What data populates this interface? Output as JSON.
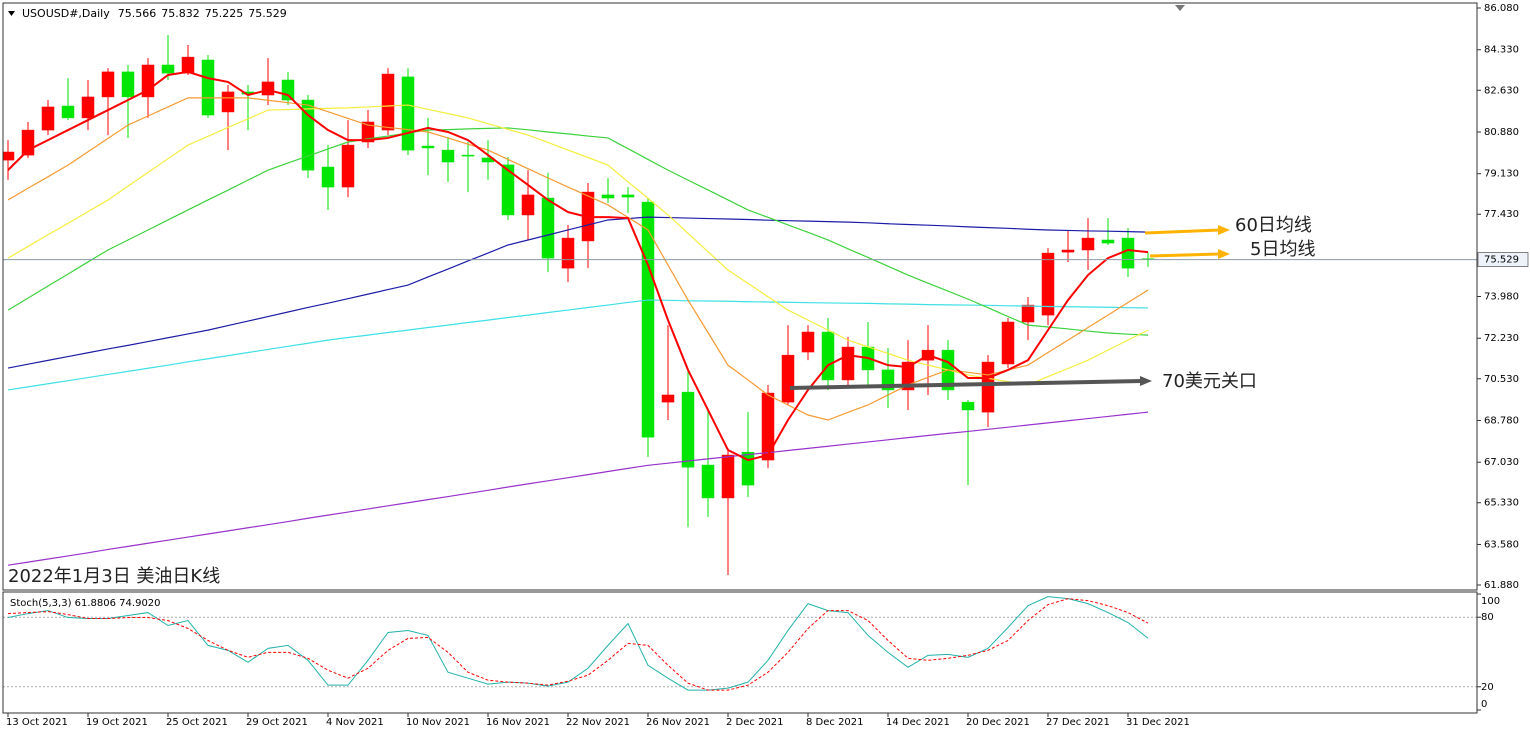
{
  "chart_data": [
    {
      "type": "candlestick",
      "symbol": "USOUSD#,Daily",
      "categories": [
        "13 Oct 2021",
        null,
        null,
        null,
        "19 Oct 2021",
        null,
        null,
        null,
        "25 Oct 2021",
        null,
        null,
        null,
        "29 Oct 2021",
        null,
        null,
        null,
        "4 Nov 2021",
        null,
        null,
        null,
        "10 Nov 2021",
        null,
        null,
        null,
        "16 Nov 2021",
        null,
        null,
        null,
        "22 Nov 2021",
        null,
        null,
        null,
        "26 Nov 2021",
        null,
        null,
        null,
        "2 Dec 2021",
        null,
        null,
        null,
        "8 Dec 2021",
        null,
        null,
        null,
        "14 Dec 2021",
        null,
        null,
        null,
        "20 Dec 2021",
        null,
        null,
        null,
        "27 Dec 2021",
        null,
        null,
        null,
        "31 Dec 2021",
        null
      ],
      "open": [
        79.7,
        79.91,
        80.96,
        81.97,
        81.47,
        82.35,
        83.4,
        82.35,
        83.69,
        83.35,
        83.9,
        81.72,
        82.56,
        82.43,
        83.06,
        82.22,
        79.41,
        78.57,
        80.46,
        80.96,
        83.19,
        80.29,
        80.12,
        79.91,
        79.79,
        79.5,
        77.4,
        78.11,
        75.17,
        76.31,
        78.24,
        78.24,
        77.94,
        69.55,
        69.97,
        66.91,
        65.53,
        67.45,
        67.12,
        69.55,
        71.65,
        72.49,
        70.48,
        71.86,
        70.9,
        70.06,
        71.31,
        71.73,
        69.55,
        69.13,
        71.15,
        72.91,
        73.2,
        75.84,
        75.93,
        76.35,
        76.43,
        75.566
      ],
      "high": [
        80.54,
        81.3,
        82.22,
        83.14,
        83.06,
        83.56,
        83.69,
        83.98,
        84.95,
        84.53,
        84.11,
        82.85,
        82.85,
        83.98,
        83.4,
        82.43,
        80.33,
        81.38,
        81.8,
        83.56,
        83.56,
        81.47,
        80.67,
        80.46,
        80.54,
        79.83,
        79.28,
        79.16,
        76.98,
        78.74,
        78.95,
        78.57,
        78.11,
        72.78,
        70.98,
        69.22,
        67.62,
        69.13,
        70.27,
        72.78,
        72.78,
        73.08,
        72.28,
        72.91,
        71.82,
        72.15,
        72.78,
        72.15,
        69.64,
        71.52,
        73.08,
        73.96,
        76.01,
        76.77,
        77.27,
        77.27,
        76.85,
        75.832
      ],
      "low": [
        78.87,
        79.79,
        80.75,
        81.38,
        80.96,
        80.75,
        80.63,
        81.47,
        83.06,
        83.27,
        81.47,
        80.12,
        80.96,
        82.01,
        82.01,
        78.95,
        77.61,
        78.15,
        80.21,
        80.75,
        79.91,
        79.07,
        78.78,
        78.36,
        78.87,
        77.19,
        76.35,
        75.0,
        74.59,
        75.17,
        77.9,
        77.48,
        67.25,
        68.8,
        64.31,
        64.73,
        62.3,
        65.57,
        66.78,
        69.43,
        71.31,
        70.06,
        70.14,
        70.14,
        69.3,
        69.22,
        69.85,
        69.64,
        66.07,
        68.5,
        70.98,
        72.15,
        72.78,
        75.42,
        75.09,
        76.14,
        74.8,
        75.225
      ],
      "close": [
        80.04,
        80.96,
        81.93,
        81.47,
        82.35,
        83.4,
        82.35,
        83.69,
        83.35,
        84.02,
        81.59,
        82.56,
        82.47,
        82.98,
        82.22,
        79.28,
        78.57,
        80.33,
        81.3,
        83.31,
        80.12,
        80.21,
        79.62,
        79.87,
        79.62,
        77.4,
        78.24,
        75.59,
        76.43,
        78.36,
        78.11,
        78.15,
        68.08,
        69.85,
        66.82,
        65.53,
        67.33,
        66.07,
        69.93,
        71.52,
        72.49,
        70.48,
        71.86,
        70.9,
        70.06,
        71.23,
        71.73,
        70.06,
        69.22,
        71.23,
        72.91,
        73.62,
        75.8,
        75.93,
        76.43,
        76.22,
        75.17,
        75.529
      ],
      "up_color": "#ff0000",
      "down_color": "#00e600",
      "lines": [
        {
          "color": "#9932cc",
          "values": [
            62.71,
            62.84,
            62.97,
            63.1,
            63.23,
            63.37,
            63.5,
            63.63,
            63.76,
            63.89,
            64.02,
            64.15,
            64.28,
            64.41,
            64.54,
            64.68,
            64.81,
            64.94,
            65.07,
            65.2,
            65.33,
            65.46,
            65.59,
            65.72,
            65.85,
            65.99,
            66.12,
            66.25,
            66.38,
            66.51,
            66.64,
            66.77,
            66.9,
            66.99,
            67.08,
            67.17,
            67.26,
            67.35,
            67.43,
            67.52,
            67.61,
            67.7,
            67.79,
            67.88,
            67.97,
            68.06,
            68.15,
            68.24,
            68.32,
            68.41,
            68.5,
            68.59,
            68.68,
            68.77,
            68.86,
            68.95,
            69.04,
            69.13
          ]
        },
        {
          "color": "#3ee0e6",
          "values": [
            70.06,
            70.19,
            70.32,
            70.45,
            70.58,
            70.71,
            70.84,
            70.97,
            71.1,
            71.24,
            71.37,
            71.5,
            71.63,
            71.76,
            71.89,
            72.02,
            72.15,
            72.26,
            72.36,
            72.47,
            72.57,
            72.68,
            72.78,
            72.89,
            72.99,
            73.1,
            73.2,
            73.31,
            73.41,
            73.52,
            73.62,
            73.73,
            73.83,
            73.82,
            73.8,
            73.79,
            73.78,
            73.76,
            73.75,
            73.74,
            73.72,
            73.71,
            73.7,
            73.69,
            73.67,
            73.66,
            73.64,
            73.63,
            73.62,
            73.61,
            73.59,
            73.58,
            73.56,
            73.55,
            73.54,
            73.53,
            73.51,
            73.5
          ]
        },
        {
          "color": "#1c1ca8",
          "values": [
            70.98,
            71.14,
            71.3,
            71.46,
            71.62,
            71.78,
            71.93,
            72.09,
            72.25,
            72.41,
            72.57,
            72.76,
            72.95,
            73.14,
            73.33,
            73.52,
            73.7,
            73.89,
            74.08,
            74.27,
            74.46,
            74.8,
            75.13,
            75.47,
            75.8,
            76.14,
            76.35,
            76.56,
            76.77,
            76.98,
            77.19,
            77.25,
            77.31,
            77.29,
            77.27,
            77.25,
            77.23,
            77.21,
            77.18,
            77.16,
            77.14,
            77.12,
            77.1,
            77.07,
            77.03,
            77.0,
            76.97,
            76.94,
            76.9,
            76.87,
            76.84,
            76.8,
            76.77,
            76.75,
            76.73,
            76.72,
            76.7,
            76.68
          ]
        },
        {
          "color": "#3cd23c",
          "values": [
            73.41,
            73.91,
            74.42,
            74.92,
            75.43,
            75.93,
            76.35,
            76.77,
            77.19,
            77.61,
            78.03,
            78.44,
            78.86,
            79.28,
            79.58,
            79.87,
            80.17,
            80.46,
            80.59,
            80.71,
            80.84,
            80.96,
            80.98,
            81.01,
            81.03,
            81.05,
            80.97,
            80.88,
            80.8,
            80.71,
            80.63,
            80.18,
            79.73,
            79.28,
            78.86,
            78.45,
            78.03,
            77.61,
            77.3,
            76.98,
            76.67,
            76.35,
            75.98,
            75.62,
            75.25,
            74.88,
            74.54,
            74.21,
            73.87,
            73.51,
            73.14,
            72.78,
            72.7,
            72.62,
            72.53,
            72.45,
            72.4,
            72.36
          ]
        },
        {
          "color": "#f5ee3c",
          "values": [
            75.59,
            76.08,
            76.57,
            77.05,
            77.54,
            78.03,
            78.61,
            79.18,
            79.76,
            80.33,
            80.7,
            81.07,
            81.43,
            81.8,
            81.82,
            81.85,
            81.87,
            81.89,
            81.93,
            81.97,
            82.01,
            81.83,
            81.65,
            81.47,
            81.23,
            80.99,
            80.75,
            80.44,
            80.12,
            79.81,
            79.49,
            78.79,
            78.1,
            77.4,
            76.63,
            75.86,
            75.09,
            74.53,
            73.97,
            73.41,
            72.99,
            72.57,
            72.15,
            71.87,
            71.59,
            71.31,
            71.1,
            70.9,
            70.69,
            70.55,
            70.41,
            70.27,
            70.62,
            70.96,
            71.31,
            71.73,
            72.15,
            72.57
          ]
        },
        {
          "color": "#f59a32",
          "values": [
            78.03,
            78.52,
            79.0,
            79.49,
            80.05,
            80.61,
            81.17,
            81.55,
            81.93,
            82.31,
            82.31,
            82.31,
            82.31,
            82.21,
            82.11,
            82.01,
            81.73,
            81.45,
            81.17,
            81.07,
            80.98,
            80.88,
            80.63,
            80.37,
            80.12,
            79.73,
            79.34,
            78.95,
            78.57,
            78.2,
            77.82,
            77.3,
            76.77,
            75.3,
            73.83,
            72.47,
            71.1,
            70.48,
            69.85,
            69.43,
            69.01,
            68.8,
            69.12,
            69.43,
            69.85,
            70.27,
            70.59,
            70.9,
            70.8,
            70.69,
            70.9,
            71.1,
            71.63,
            72.15,
            72.68,
            73.2,
            73.73,
            74.25
          ]
        },
        {
          "color": "#ff0000",
          "values": [
            79.28,
            80.12,
            80.54,
            80.96,
            81.38,
            81.8,
            82.22,
            82.64,
            83.27,
            83.4,
            83.14,
            82.98,
            82.43,
            82.64,
            82.43,
            81.59,
            80.96,
            80.54,
            80.54,
            80.63,
            80.84,
            81.05,
            80.88,
            80.54,
            79.91,
            79.28,
            78.66,
            78.03,
            77.52,
            77.31,
            77.31,
            77.27,
            75.3,
            72.99,
            70.9,
            69.22,
            67.54,
            67.12,
            67.33,
            68.8,
            70.06,
            71.1,
            71.52,
            71.4,
            71.1,
            71.02,
            71.52,
            71.23,
            70.56,
            70.56,
            70.9,
            71.31,
            72.57,
            73.83,
            74.88,
            75.59,
            75.93,
            75.84
          ]
        }
      ],
      "ylim": [
        61.67,
        86.29
      ],
      "yticks": [
        {
          "value": 86.08,
          "label": "86.080"
        },
        {
          "value": 84.33,
          "label": "84.330"
        },
        {
          "value": 82.63,
          "label": "82.630"
        },
        {
          "value": 80.88,
          "label": "80.880"
        },
        {
          "value": 79.13,
          "label": "79.130"
        },
        {
          "value": 77.43,
          "label": "77.430"
        },
        {
          "value": 73.98,
          "label": "73.980"
        },
        {
          "value": 72.23,
          "label": "72.230"
        },
        {
          "value": 70.53,
          "label": "70.530"
        },
        {
          "value": 68.78,
          "label": "68.780"
        },
        {
          "value": 67.03,
          "label": "67.030"
        },
        {
          "value": 65.33,
          "label": "65.330"
        },
        {
          "value": 63.58,
          "label": "63.580"
        },
        {
          "value": 61.88,
          "label": "61.880"
        }
      ],
      "annotations": [
        {
          "text": "60日均线",
          "color": "#ffb300"
        },
        {
          "text": "5日均线",
          "color": "#ffb300"
        },
        {
          "text": "70美元关口",
          "color": "#555555"
        }
      ],
      "caption": "2022年1月3日 美油日K线"
    },
    {
      "type": "line",
      "title": "Stoch(5,3,3) 61.8806 74.9020",
      "series": [
        {
          "color": "#20b2aa",
          "values": [
            79.7,
            83.13,
            85.7,
            79.7,
            78.84,
            78.84,
            81.42,
            83.99,
            72.85,
            77.13,
            55.71,
            51.42,
            41.14,
            53.13,
            55.71,
            42.85,
            21.43,
            21.43,
            42.85,
            66.85,
            68.56,
            64.28,
            32.57,
            27.42,
            22.28,
            24.0,
            23.14,
            20.57,
            24.0,
            35.99,
            55.71,
            74.56,
            38.57,
            27.42,
            17.14,
            17.14,
            18.85,
            24.0,
            42.85,
            68.56,
            91.7,
            85.7,
            83.99,
            64.28,
            49.71,
            36.85,
            47.14,
            47.99,
            45.42,
            53.13,
            71.13,
            89.99,
            97.7,
            95.98,
            91.7,
            83.99,
            75.42,
            61.8806
          ]
        },
        {
          "color": "#ff0000",
          "dashed": true,
          "values": [
            83.13,
            83.99,
            84.84,
            82.27,
            78.84,
            78.84,
            79.7,
            79.7,
            77.13,
            70.27,
            59.99,
            51.42,
            45.42,
            49.71,
            49.71,
            44.56,
            34.28,
            27.42,
            35.99,
            51.42,
            61.7,
            62.56,
            49.71,
            32.57,
            25.71,
            24.0,
            23.14,
            21.43,
            24.85,
            30.0,
            42.85,
            57.42,
            55.71,
            38.57,
            23.14,
            17.14,
            17.14,
            21.43,
            32.57,
            49.71,
            70.27,
            85.7,
            85.7,
            77.13,
            59.99,
            44.56,
            42.85,
            44.56,
            47.14,
            51.42,
            59.99,
            77.13,
            90.84,
            95.98,
            94.27,
            89.99,
            83.99,
            74.902
          ]
        }
      ],
      "ylim": [
        0,
        100
      ],
      "yticks": [
        0,
        20,
        80,
        100
      ],
      "levels": [
        20,
        80
      ]
    }
  ]
}
